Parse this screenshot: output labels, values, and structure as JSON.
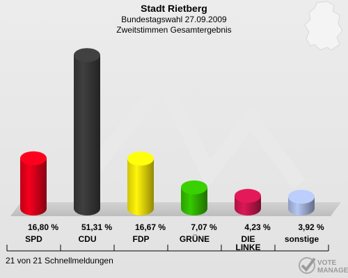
{
  "header": {
    "title": "Stadt Rietberg",
    "subtitle1": "Bundestagswahl 27.09.2009",
    "subtitle2": "Zweitstimmen Gesamtergebnis"
  },
  "chart_data": {
    "type": "bar",
    "categories": [
      "SPD",
      "CDU",
      "FDP",
      "GRÜNE",
      "DIE LINKE",
      "sonstige"
    ],
    "values": [
      16.8,
      51.31,
      16.67,
      7.07,
      4.23,
      3.92
    ],
    "value_labels": [
      "16,80 %",
      "51,31 %",
      "16,67 %",
      "7,07 %",
      "4,23 %",
      "3,92 %"
    ],
    "colors": [
      "#e3001b",
      "#3a3a3a",
      "#f5e40a",
      "#33bb00",
      "#cc1650",
      "#a8b8e0"
    ],
    "ylim": [
      0,
      53
    ],
    "grid": false
  },
  "footer": {
    "text": "21 von 21 Schnellmeldungen",
    "logo_line1": "VOTE",
    "logo_line2": "MANAGER"
  }
}
